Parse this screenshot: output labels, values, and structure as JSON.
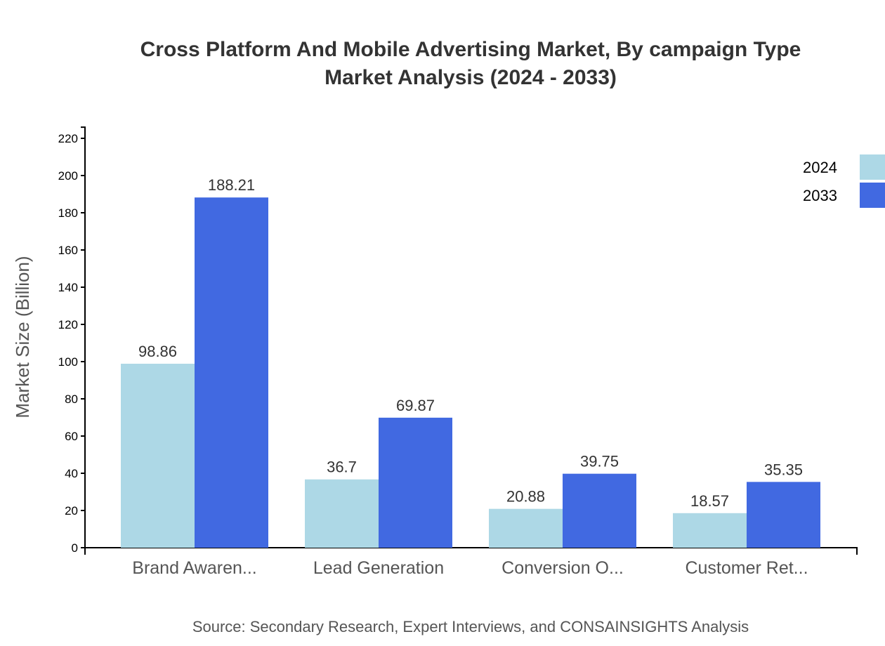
{
  "chart_data": {
    "type": "bar",
    "title": "Cross Platform And Mobile Advertising Market, By campaign Type",
    "subtitle": "Market Analysis (2024 - 2033)",
    "ylabel": "Market Size (Billion)",
    "xlabel": "",
    "ylim": [
      0,
      226
    ],
    "yticks": [
      0,
      20,
      40,
      60,
      80,
      100,
      120,
      140,
      160,
      180,
      200,
      220
    ],
    "categories": [
      "Brand Awaren...",
      "Lead Generation",
      "Conversion O...",
      "Customer Ret..."
    ],
    "series": [
      {
        "name": "2024",
        "color": "#ADD8E6",
        "values": [
          98.86,
          36.7,
          20.88,
          18.57
        ]
      },
      {
        "name": "2033",
        "color": "#4169E1",
        "values": [
          188.21,
          69.87,
          39.75,
          35.35
        ]
      }
    ],
    "grid": false,
    "legend_position": "top-right",
    "source": "Source: Secondary Research, Expert Interviews, and CONSAINSIGHTS Analysis"
  }
}
